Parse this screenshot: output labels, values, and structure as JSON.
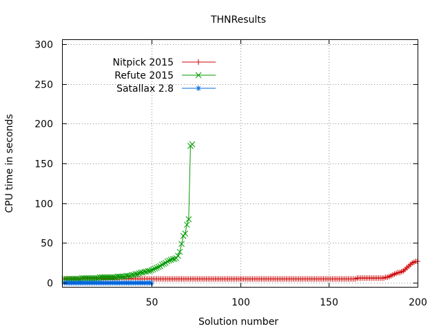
{
  "chart_data": {
    "type": "line",
    "title": "THNResults",
    "xlabel": "Solution number",
    "ylabel": "CPU time in seconds",
    "xlim": [
      0,
      200
    ],
    "ylim": [
      -5,
      305
    ],
    "xticks": [
      50,
      100,
      150,
      200
    ],
    "yticks": [
      0,
      50,
      100,
      150,
      200,
      250,
      300
    ],
    "grid": true,
    "legend_position": "top-left",
    "series": [
      {
        "name": "Nitpick 2015",
        "color": "#cc0000",
        "marker": "plus",
        "x_start": 1,
        "values": [
          5,
          5,
          5,
          5,
          5,
          5,
          5,
          5,
          5,
          5,
          5,
          5,
          5,
          5,
          5,
          5,
          5,
          5,
          5,
          5,
          5,
          5,
          5,
          5,
          5,
          5,
          5,
          5,
          5,
          5,
          5,
          5,
          5,
          5,
          5,
          5,
          5,
          5,
          5,
          5,
          5,
          5,
          5,
          5,
          5,
          5,
          5,
          5,
          5,
          5,
          5,
          5,
          5,
          5,
          5,
          5,
          5,
          5,
          5,
          5,
          5,
          5,
          5,
          5,
          5,
          5,
          5,
          5,
          5,
          5,
          5,
          5,
          5,
          5,
          5,
          5,
          5,
          5,
          5,
          5,
          5,
          5,
          5,
          5,
          5,
          5,
          5,
          5,
          5,
          5,
          5,
          5,
          5,
          5,
          5,
          5,
          5,
          5,
          5,
          5,
          5,
          5,
          5,
          5,
          5,
          5,
          5,
          5,
          5,
          5,
          5,
          5,
          5,
          5,
          5,
          5,
          5,
          5,
          5,
          5,
          5,
          5,
          5,
          5,
          5,
          5,
          5,
          5,
          5,
          5,
          5,
          5,
          5,
          5,
          5,
          5,
          5,
          5,
          5,
          5,
          5,
          5,
          5,
          5,
          5,
          5,
          5,
          5,
          5,
          5,
          5,
          5,
          5,
          5,
          5,
          5,
          5,
          5,
          5,
          5,
          5,
          5,
          5,
          5,
          5,
          6,
          6,
          6,
          6,
          6,
          6,
          6,
          6,
          6,
          6,
          6,
          6,
          6,
          6,
          6,
          6,
          7,
          7,
          8,
          9,
          10,
          11,
          12,
          13,
          13,
          14,
          15,
          17,
          19,
          21,
          23,
          25,
          26,
          27,
          27
        ]
      },
      {
        "name": "Refute 2015",
        "color": "#009900",
        "marker": "x",
        "x_start": 1,
        "values": [
          5,
          5,
          5,
          5,
          5,
          5,
          5,
          5,
          5,
          5,
          6,
          6,
          6,
          6,
          6,
          6,
          6,
          6,
          6,
          6,
          7,
          7,
          7,
          7,
          7,
          7,
          7,
          7,
          7,
          7,
          8,
          8,
          8,
          8,
          8,
          9,
          9,
          9,
          10,
          10,
          11,
          11,
          12,
          13,
          13,
          14,
          14,
          15,
          15,
          16,
          17,
          18,
          19,
          20,
          21,
          23,
          24,
          25,
          27,
          28,
          29,
          30,
          30,
          31,
          34,
          39,
          49,
          59,
          62,
          73,
          80,
          172,
          174
        ]
      },
      {
        "name": "Satallax 2.8",
        "color": "#0066dd",
        "marker": "star",
        "x_start": 1,
        "values": [
          0,
          0,
          0,
          0,
          0,
          0,
          0,
          0,
          0,
          0,
          0,
          0,
          0,
          0,
          0,
          0,
          0,
          0,
          0,
          0,
          0,
          0,
          0,
          0,
          0,
          0,
          0,
          0,
          0,
          0,
          0,
          0,
          0,
          0,
          0,
          0,
          0,
          0,
          0,
          0,
          0,
          0,
          0,
          0,
          0,
          0,
          0,
          0,
          0,
          0
        ]
      }
    ]
  }
}
